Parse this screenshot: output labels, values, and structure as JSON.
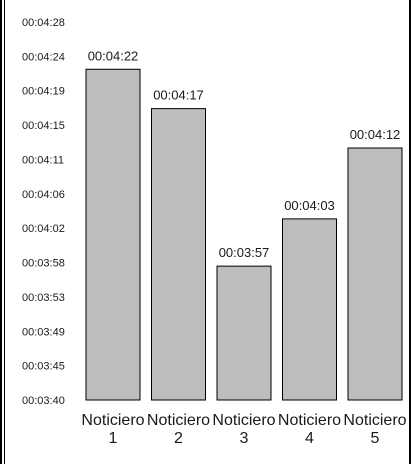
{
  "chart_data": {
    "type": "bar",
    "categories": [
      "Noticiero\n1",
      "Noticiero\n2",
      "Noticiero\n3",
      "Noticiero\n4",
      "Noticiero\n5"
    ],
    "values": [
      "00:04:22",
      "00:04:17",
      "00:03:57",
      "00:04:03",
      "00:04:12"
    ],
    "data_labels": [
      "00:04:22",
      "00:04:17",
      "00:03:57",
      "00:04:03",
      "00:04:12"
    ],
    "y_ticks": [
      "00:03:40",
      "00:03:45",
      "00:03:49",
      "00:03:53",
      "00:03:58",
      "00:04:02",
      "00:04:06",
      "00:04:11",
      "00:04:15",
      "00:04:19",
      "00:04:24",
      "00:04:28"
    ],
    "ylim": [
      "00:03:40",
      "00:04:28"
    ],
    "grid": false,
    "legend": "none",
    "colors": {
      "bar_fill": "#bdbdbd",
      "bar_stroke": "#000000",
      "text": "#1a1a1a"
    },
    "title": "",
    "xlabel": "",
    "ylabel": ""
  }
}
